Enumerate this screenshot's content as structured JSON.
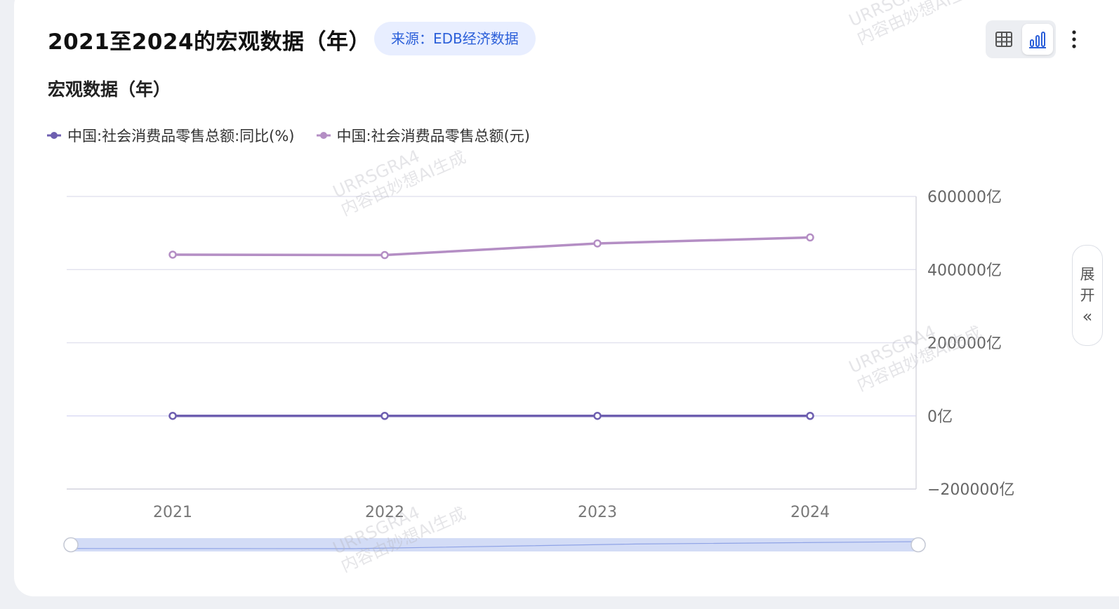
{
  "header": {
    "title": "2021至2024的宏观数据（年）",
    "source_label": "来源：EDB经济数据"
  },
  "subtitle": "宏观数据（年）",
  "toolbar": {
    "table_view_icon": "table-grid-icon",
    "chart_view_icon": "bar-chart-icon",
    "more_icon": "more-vertical-icon",
    "active_view": "chart",
    "active_color": "#2b5fd9"
  },
  "side_panel": {
    "expand_char_1": "展",
    "expand_char_2": "开",
    "expand_arrow": "«"
  },
  "watermark": {
    "line1": "URRSGRA4",
    "line2": "内容由妙想AI生成"
  },
  "chart_data": {
    "type": "line",
    "categories": [
      "2021",
      "2022",
      "2023",
      "2024"
    ],
    "y_axis": {
      "position": "right",
      "min": -200000,
      "max": 600000,
      "ticks": [
        600000,
        400000,
        200000,
        0,
        -200000
      ],
      "tick_labels": [
        "600000亿",
        "400000亿",
        "200000亿",
        "0亿",
        "−200000亿"
      ],
      "unit": "亿"
    },
    "grid": true,
    "legend_position": "top-left",
    "series": [
      {
        "name": "中国:社会消费品零售总额:同比(%)",
        "color": "#6e5fb0",
        "values": [
          12.5,
          -0.2,
          7.2,
          3.5
        ]
      },
      {
        "name": "中国:社会消费品零售总额(元)",
        "color": "#b48ec4",
        "values": [
          440823,
          439733,
          471495,
          487895
        ]
      }
    ],
    "data_zoom": {
      "range_start": 0,
      "range_end": 100,
      "fill_color": "#d3dcf6"
    }
  }
}
